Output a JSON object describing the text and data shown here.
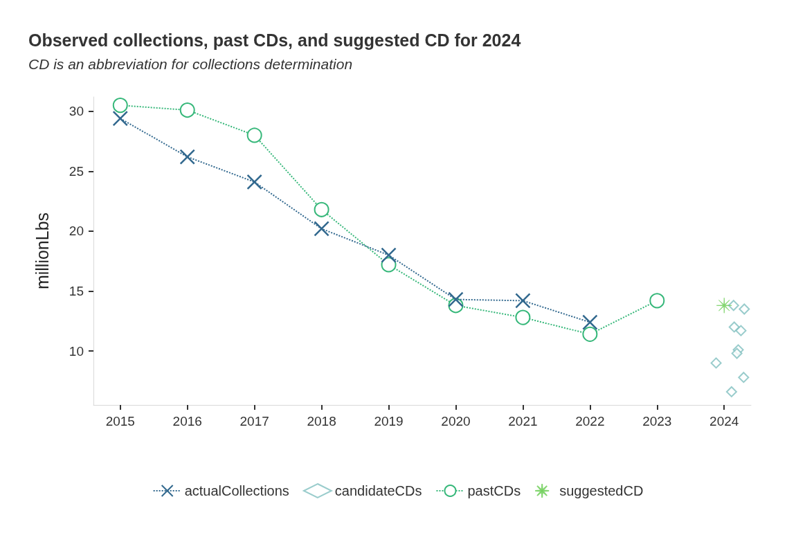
{
  "chart_data": {
    "type": "line",
    "title": "Observed collections, past CDs, and suggested CD for 2024",
    "subtitle": "CD is an abbreviation for collections determination",
    "ylabel": "millionLbs",
    "series": [
      {
        "name": "actualCollections",
        "color": "#31688e",
        "marker": "cross",
        "line_style": "dotted",
        "x": [
          2015,
          2016,
          2017,
          2018,
          2019,
          2020,
          2021,
          2022
        ],
        "values": [
          29.4,
          26.2,
          24.1,
          20.2,
          18.0,
          14.3,
          14.2,
          12.4
        ]
      },
      {
        "name": "candidateCDs",
        "type": "scatter",
        "color": "#7fbfbf",
        "marker": "diamond",
        "x": [
          2024.3,
          2024.14,
          2024.15,
          2024.25,
          2024.21,
          2024.19,
          2023.88,
          2024.29,
          2024.11
        ],
        "values": [
          13.5,
          13.8,
          12.0,
          11.7,
          10.1,
          9.8,
          9.0,
          7.8,
          6.6
        ]
      },
      {
        "name": "pastCDs",
        "color": "#35b779",
        "marker": "circle",
        "line_style": "dotted",
        "x": [
          2015,
          2016,
          2017,
          2018,
          2019,
          2020,
          2021,
          2022,
          2023
        ],
        "values": [
          30.5,
          30.1,
          28.0,
          21.8,
          17.2,
          13.8,
          12.8,
          11.4,
          14.2
        ]
      },
      {
        "name": "suggestedCD",
        "type": "scatter",
        "color": "#6ece58",
        "marker": "star",
        "x": [
          2024
        ],
        "values": [
          13.8
        ]
      }
    ],
    "xlim": [
      2014.6,
      2024.4
    ],
    "xticks": [
      2015,
      2016,
      2017,
      2018,
      2019,
      2020,
      2021,
      2022,
      2023,
      2024
    ],
    "ylim": [
      5.5,
      31.2
    ],
    "yticks": [
      10,
      15,
      20,
      25,
      30
    ],
    "grid": false,
    "legend": "bottom"
  }
}
